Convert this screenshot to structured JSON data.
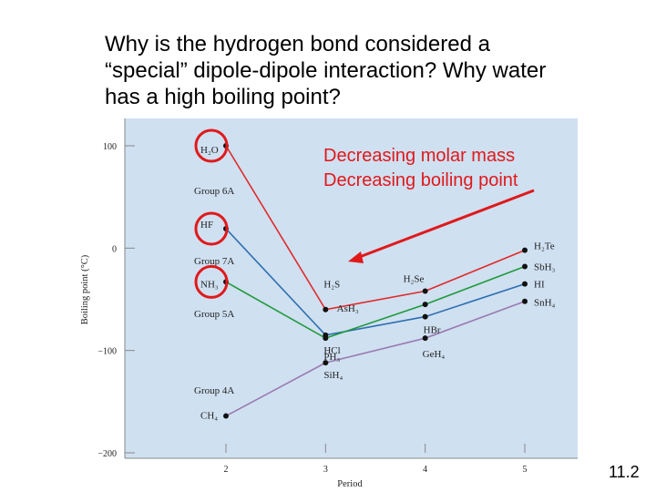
{
  "slide": {
    "heading_lines": [
      "Why is the hydrogen bond considered a",
      "“special” dipole-dipole interaction? Why water",
      "has a high boiling point?"
    ],
    "annotation_lines": [
      "Decreasing molar mass",
      "Decreasing boiling point"
    ],
    "annotation_color": "#e0191b",
    "slide_number": "11.2"
  },
  "chart_data": {
    "type": "line",
    "xlabel": "Period",
    "ylabel": "Boiling point (°C)",
    "xlim": [
      2,
      5
    ],
    "ylim": [
      -200,
      100
    ],
    "x_ticks": [
      "2",
      "3",
      "4",
      "5"
    ],
    "y_ticks": [
      "100",
      "0",
      "−100",
      "−200"
    ],
    "background": "#cfe0f1",
    "series": [
      {
        "name": "Group 6A",
        "color": "#e02a2a",
        "x": [
          2,
          3,
          4,
          5
        ],
        "y": [
          100,
          -60,
          -42,
          -2
        ],
        "compounds": [
          "H₂O",
          "H₂S",
          "H₂Se",
          "H₂Te"
        ]
      },
      {
        "name": "Group 7A",
        "color": "#2e6fb0",
        "x": [
          2,
          3,
          4,
          5
        ],
        "y": [
          19,
          -85,
          -67,
          -35
        ],
        "compounds": [
          "HF",
          "HCl",
          "HBr",
          "HI"
        ]
      },
      {
        "name": "Group 5A",
        "color": "#1f9a3c",
        "x": [
          2,
          3,
          4,
          5
        ],
        "y": [
          -33,
          -88,
          -55,
          -18
        ],
        "compounds": [
          "NH₃",
          "PH₃",
          "AsH₃",
          "SbH₃"
        ]
      },
      {
        "name": "Group 4A",
        "color": "#9a7ab0",
        "x": [
          2,
          3,
          4,
          5
        ],
        "y": [
          -164,
          -112,
          -88,
          -52
        ],
        "compounds": [
          "CH₄",
          "SiH₄",
          "GeH₄",
          "SnH₄"
        ]
      }
    ]
  }
}
